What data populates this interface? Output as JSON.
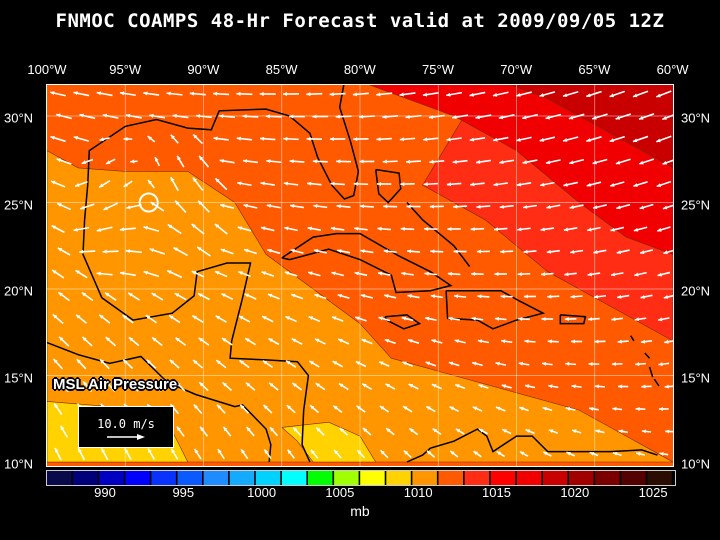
{
  "title": "FNMOC COAMPS 48-Hr Forecast valid at 2009/09/05 12Z",
  "lon_labels": [
    "100°W",
    "95°W",
    "90°W",
    "85°W",
    "80°W",
    "75°W",
    "70°W",
    "65°W",
    "60°W"
  ],
  "lat_labels": [
    "30°N",
    "25°N",
    "20°N",
    "15°N",
    "10°N"
  ],
  "field_label": "MSL Air Pressure",
  "wind_scale": {
    "label": "10.0 m/s"
  },
  "colorbar": {
    "units": "mb",
    "labels": [
      "990",
      "995",
      "1000",
      "1005",
      "1010",
      "1015",
      "1020",
      "1025"
    ],
    "colors": [
      "#0a0a4a",
      "#00007a",
      "#0000c0",
      "#0000ff",
      "#0a32ff",
      "#0a5aff",
      "#1e8cff",
      "#14aaff",
      "#00d2ff",
      "#00ffff",
      "#00ff00",
      "#a0ff00",
      "#ffff00",
      "#ffd200",
      "#ff9600",
      "#ff5a00",
      "#ff2d14",
      "#ff0000",
      "#f00000",
      "#c80000",
      "#a00000",
      "#7a0000",
      "#520000",
      "#2a0c00"
    ]
  },
  "map": {
    "extent": {
      "lon_w": [
        100,
        60
      ],
      "lat_n": [
        10,
        32
      ]
    },
    "pressure_colors": {
      "1010": "#ffd200",
      "1012": "#ff9600",
      "1014": "#ff5a00",
      "1016": "#ff2d14",
      "1018": "#f00000",
      "1020": "#c80000"
    }
  }
}
